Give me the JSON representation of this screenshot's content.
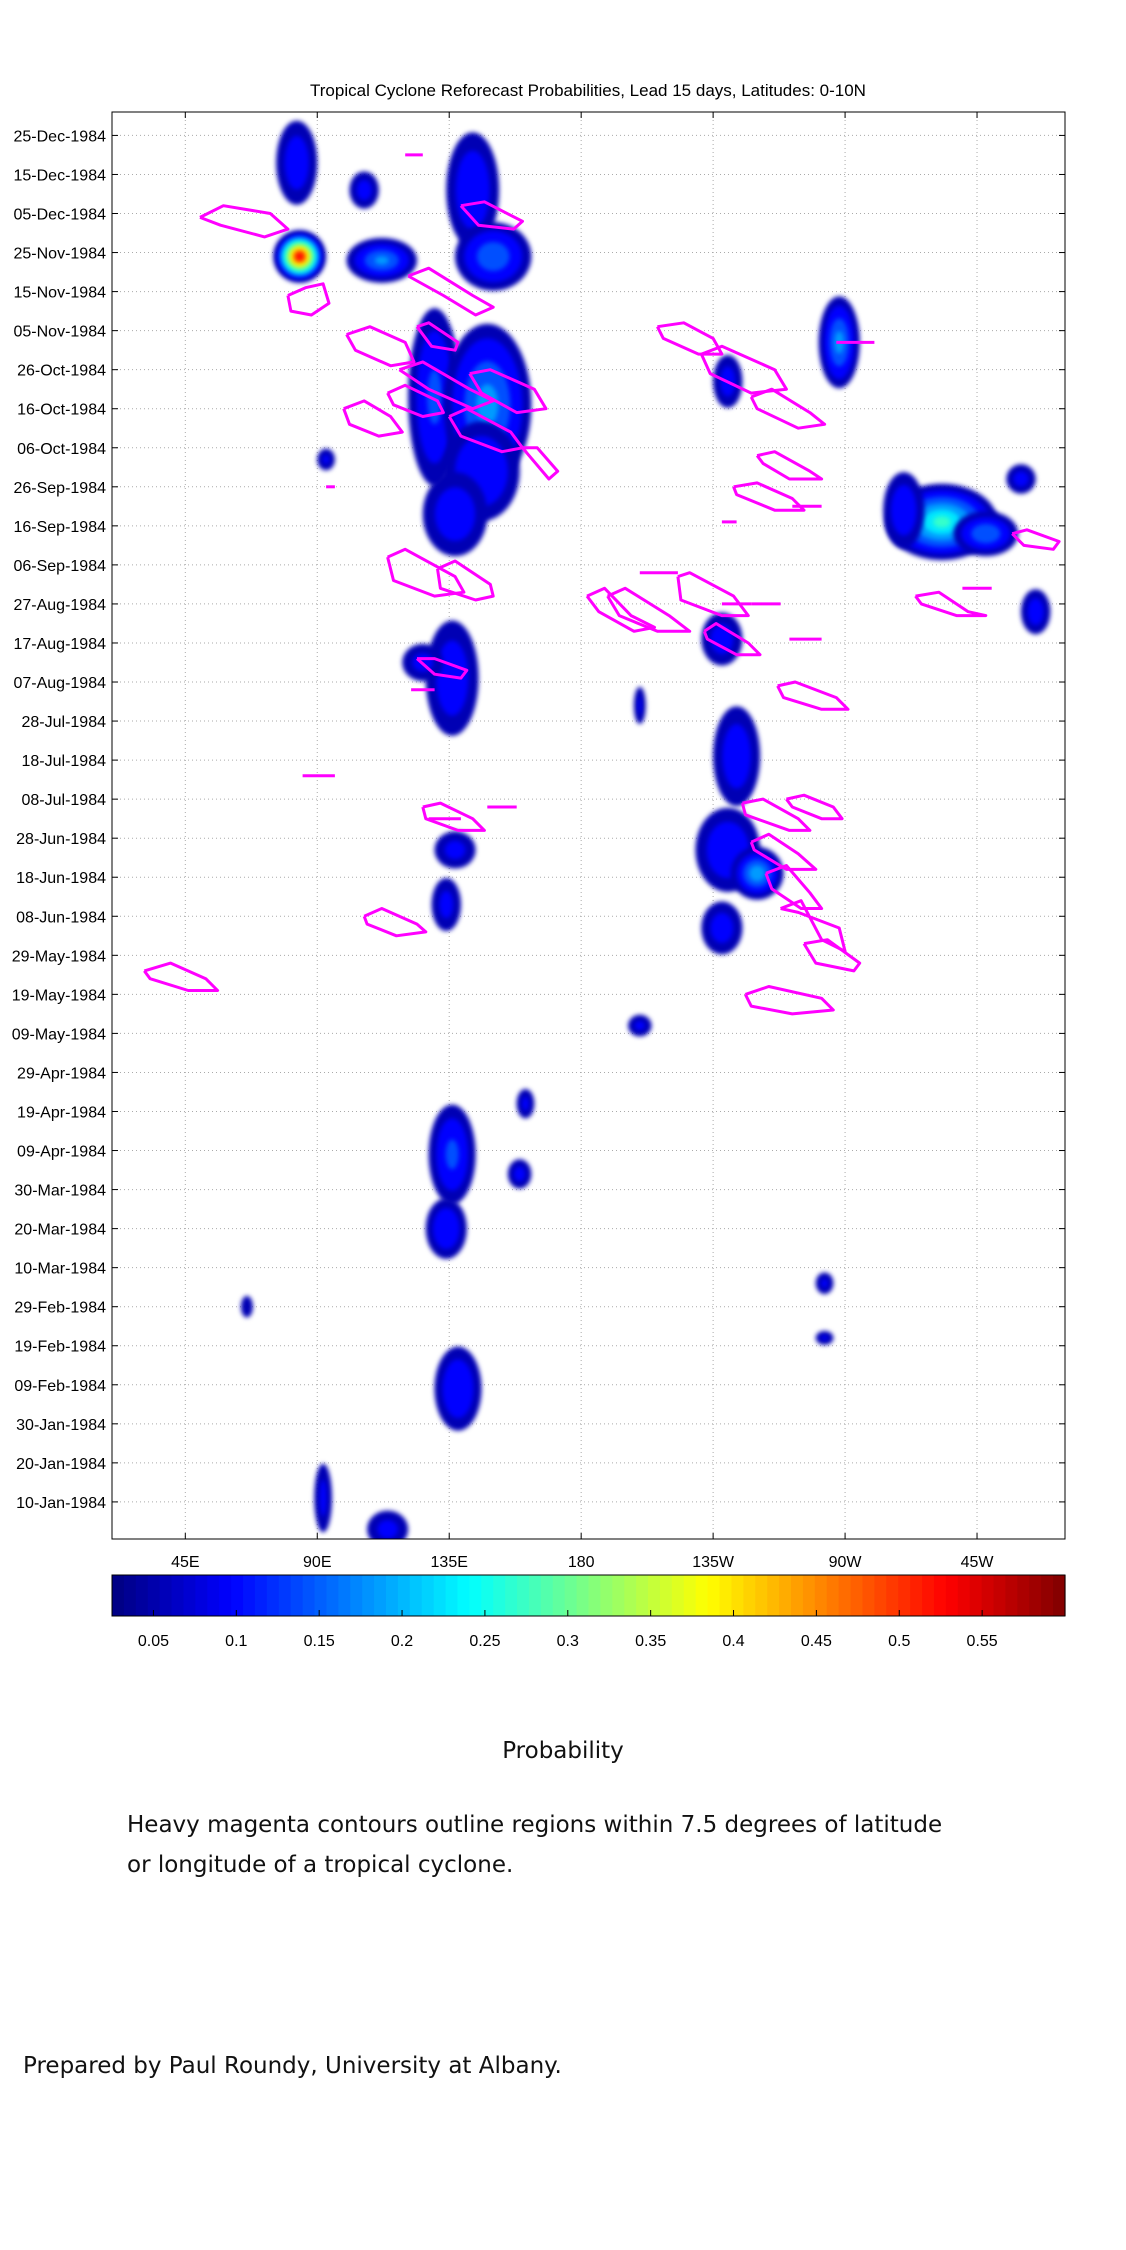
{
  "chart_data": {
    "type": "heatmap",
    "title": "Tropical Cyclone Reforecast Probabilities, Lead 15 days, Latitudes: 0-10N",
    "xlabel": "",
    "ylabel": "",
    "x_ticks": [
      "45E",
      "90E",
      "135E",
      "180",
      "135W",
      "90W",
      "45W"
    ],
    "x_tick_values": [
      45,
      90,
      135,
      180,
      225,
      270,
      315
    ],
    "xlim": [
      20,
      345
    ],
    "y_ticks": [
      "25-Dec-1984",
      "15-Dec-1984",
      "05-Dec-1984",
      "25-Nov-1984",
      "15-Nov-1984",
      "05-Nov-1984",
      "26-Oct-1984",
      "16-Oct-1984",
      "06-Oct-1984",
      "26-Sep-1984",
      "16-Sep-1984",
      "06-Sep-1984",
      "27-Aug-1984",
      "17-Aug-1984",
      "07-Aug-1984",
      "28-Jul-1984",
      "18-Jul-1984",
      "08-Jul-1984",
      "28-Jun-1984",
      "18-Jun-1984",
      "08-Jun-1984",
      "29-May-1984",
      "19-May-1984",
      "09-May-1984",
      "29-Apr-1984",
      "19-Apr-1984",
      "09-Apr-1984",
      "30-Mar-1984",
      "20-Mar-1984",
      "10-Mar-1984",
      "29-Feb-1984",
      "19-Feb-1984",
      "09-Feb-1984",
      "30-Jan-1984",
      "20-Jan-1984",
      "10-Jan-1984"
    ],
    "y_tick_values": [
      359,
      349,
      339,
      329,
      319,
      309,
      299,
      289,
      279,
      269,
      259,
      249,
      239,
      229,
      219,
      209,
      199,
      189,
      179,
      169,
      159,
      149,
      139,
      129,
      119,
      109,
      99,
      89,
      79,
      69,
      59,
      49,
      39,
      29,
      19,
      9
    ],
    "ylim": [
      -0.5,
      365
    ],
    "colorbar": {
      "label": "Probability",
      "ticks": [
        "0.05",
        "0.1",
        "0.15",
        "0.2",
        "0.25",
        "0.3",
        "0.35",
        "0.4",
        "0.45",
        "0.5",
        "0.55"
      ],
      "tick_values": [
        0.05,
        0.1,
        0.15,
        0.2,
        0.25,
        0.3,
        0.35,
        0.4,
        0.45,
        0.5,
        0.55
      ],
      "range": [
        0.025,
        0.6
      ],
      "colormap": "jet"
    },
    "grid": true,
    "contour_color": "#ff00ff",
    "prob_blobs": [
      {
        "lon": 83,
        "day": 352,
        "dlon": 6,
        "dday": 10,
        "p": 0.07
      },
      {
        "lon": 84,
        "day": 328,
        "dlon": 8,
        "dday": 6,
        "p": 0.58
      },
      {
        "lon": 112,
        "day": 327,
        "dlon": 11,
        "dday": 5,
        "p": 0.15
      },
      {
        "lon": 106,
        "day": 345,
        "dlon": 4,
        "dday": 4,
        "p": 0.06
      },
      {
        "lon": 143,
        "day": 345,
        "dlon": 8,
        "dday": 14,
        "p": 0.08
      },
      {
        "lon": 150,
        "day": 328,
        "dlon": 12,
        "dday": 8,
        "p": 0.13
      },
      {
        "lon": 130,
        "day": 292,
        "dlon": 8,
        "dday": 22,
        "p": 0.1
      },
      {
        "lon": 148,
        "day": 290,
        "dlon": 14,
        "dday": 20,
        "p": 0.16
      },
      {
        "lon": 146,
        "day": 273,
        "dlon": 12,
        "dday": 12,
        "p": 0.09
      },
      {
        "lon": 137,
        "day": 262,
        "dlon": 10,
        "dday": 10,
        "p": 0.07
      },
      {
        "lon": 93,
        "day": 276,
        "dlon": 2,
        "dday": 2,
        "p": 0.05
      },
      {
        "lon": 268,
        "day": 306,
        "dlon": 6,
        "dday": 11,
        "p": 0.16
      },
      {
        "lon": 230,
        "day": 296,
        "dlon": 4,
        "dday": 6,
        "p": 0.06
      },
      {
        "lon": 303,
        "day": 260,
        "dlon": 18,
        "dday": 9,
        "p": 0.26
      },
      {
        "lon": 318,
        "day": 257,
        "dlon": 10,
        "dday": 5,
        "p": 0.14
      },
      {
        "lon": 290,
        "day": 263,
        "dlon": 6,
        "dday": 9,
        "p": 0.08
      },
      {
        "lon": 330,
        "day": 271,
        "dlon": 4,
        "dday": 3,
        "p": 0.06
      },
      {
        "lon": 335,
        "day": 237,
        "dlon": 4,
        "dday": 5,
        "p": 0.07
      },
      {
        "lon": 136,
        "day": 220,
        "dlon": 8,
        "dday": 14,
        "p": 0.07
      },
      {
        "lon": 126,
        "day": 224,
        "dlon": 6,
        "dday": 4,
        "p": 0.05
      },
      {
        "lon": 228,
        "day": 230,
        "dlon": 6,
        "dday": 6,
        "p": 0.06
      },
      {
        "lon": 233,
        "day": 200,
        "dlon": 7,
        "dday": 12,
        "p": 0.07
      },
      {
        "lon": 230,
        "day": 176,
        "dlon": 10,
        "dday": 10,
        "p": 0.08
      },
      {
        "lon": 240,
        "day": 170,
        "dlon": 8,
        "dday": 6,
        "p": 0.18
      },
      {
        "lon": 228,
        "day": 156,
        "dlon": 6,
        "dday": 6,
        "p": 0.06
      },
      {
        "lon": 137,
        "day": 176,
        "dlon": 6,
        "dday": 4,
        "p": 0.05
      },
      {
        "lon": 134,
        "day": 162,
        "dlon": 4,
        "dday": 6,
        "p": 0.05
      },
      {
        "lon": 200,
        "day": 213,
        "dlon": 1,
        "dday": 4,
        "p": 0.05
      },
      {
        "lon": 136,
        "day": 98,
        "dlon": 7,
        "dday": 12,
        "p": 0.1
      },
      {
        "lon": 134,
        "day": 79,
        "dlon": 6,
        "dday": 7,
        "p": 0.09
      },
      {
        "lon": 159,
        "day": 93,
        "dlon": 3,
        "dday": 3,
        "p": 0.06
      },
      {
        "lon": 200,
        "day": 131,
        "dlon": 3,
        "dday": 2,
        "p": 0.05
      },
      {
        "lon": 138,
        "day": 38,
        "dlon": 7,
        "dday": 10,
        "p": 0.09
      },
      {
        "lon": 114,
        "day": 2,
        "dlon": 6,
        "dday": 4,
        "p": 0.05
      },
      {
        "lon": 161,
        "day": 111,
        "dlon": 2,
        "dday": 3,
        "p": 0.05
      },
      {
        "lon": 92,
        "day": 10,
        "dlon": 2,
        "dday": 8,
        "p": 0.05
      },
      {
        "lon": 263,
        "day": 65,
        "dlon": 2,
        "dday": 2,
        "p": 0.05
      },
      {
        "lon": 263,
        "day": 51,
        "dlon": 2,
        "dday": 1,
        "p": 0.05
      },
      {
        "lon": 66,
        "day": 59,
        "dlon": 1,
        "dday": 2,
        "p": 0.04
      }
    ],
    "cyclone_contours": [
      {
        "lon": [
          50,
          58,
          74,
          80,
          72,
          57,
          50
        ],
        "day": [
          338,
          341,
          339,
          335,
          333,
          336,
          338
        ]
      },
      {
        "lon": [
          80,
          86,
          92,
          94,
          88,
          81,
          80
        ],
        "day": [
          318,
          320,
          321,
          316,
          313,
          314,
          318
        ]
      },
      {
        "lon": [
          121,
          128,
          143,
          150,
          144,
          133,
          121
        ],
        "day": [
          323,
          325,
          318,
          315,
          313,
          318,
          323
        ]
      },
      {
        "lon": [
          139,
          147,
          160,
          157,
          145,
          139
        ],
        "day": [
          341,
          342,
          337,
          335,
          336,
          341
        ]
      },
      {
        "lon": [
          100,
          108,
          120,
          123,
          115,
          103,
          100
        ],
        "day": [
          308,
          310,
          306,
          301,
          300,
          304,
          308
        ]
      },
      {
        "lon": [
          118,
          126,
          142,
          150,
          143,
          128,
          118
        ],
        "day": [
          299,
          301,
          294,
          291,
          289,
          294,
          299
        ]
      },
      {
        "lon": [
          142,
          149,
          164,
          168,
          158,
          146,
          142
        ],
        "day": [
          298,
          299,
          294,
          289,
          288,
          293,
          298
        ]
      },
      {
        "lon": [
          99,
          106,
          115,
          119,
          111,
          101,
          99
        ],
        "day": [
          289,
          291,
          287,
          283,
          282,
          285,
          289
        ]
      },
      {
        "lon": [
          135,
          141,
          156,
          160,
          153,
          139,
          135
        ],
        "day": [
          287,
          289,
          283,
          279,
          278,
          282,
          287
        ]
      },
      {
        "lon": [
          114,
          120,
          131,
          133,
          126,
          116,
          114
        ],
        "day": [
          293,
          295,
          291,
          288,
          287,
          290,
          293
        ]
      },
      {
        "lon": [
          124,
          128,
          138,
          137,
          129,
          124
        ],
        "day": [
          310,
          311,
          306,
          304,
          305,
          310
        ]
      },
      {
        "lon": [
          160,
          165,
          172,
          169,
          160
        ],
        "day": [
          279,
          279,
          273,
          271,
          279
        ]
      },
      {
        "lon": [
          93,
          96
        ],
        "day": [
          269,
          269
        ]
      },
      {
        "lon": [
          120,
          126
        ],
        "day": [
          354,
          354
        ]
      },
      {
        "lon": [
          114,
          120,
          137,
          140,
          130,
          116,
          114
        ],
        "day": [
          251,
          253,
          246,
          242,
          241,
          245,
          251
        ]
      },
      {
        "lon": [
          131,
          137,
          149,
          150,
          144,
          132,
          131
        ],
        "day": [
          248,
          250,
          244,
          241,
          240,
          243,
          248
        ]
      },
      {
        "lon": [
          124,
          130,
          141,
          139,
          130,
          124
        ],
        "day": [
          225,
          225,
          222,
          220,
          221,
          225
        ]
      },
      {
        "lon": [
          122,
          130
        ],
        "day": [
          217,
          217
        ]
      },
      {
        "lon": [
          206,
          215,
          225,
          228,
          220,
          208,
          206
        ],
        "day": [
          310,
          311,
          307,
          303,
          303,
          307,
          310
        ]
      },
      {
        "lon": [
          221,
          228,
          246,
          250,
          238,
          224,
          221
        ],
        "day": [
          303,
          305,
          299,
          294,
          293,
          298,
          303
        ]
      },
      {
        "lon": [
          238,
          245,
          258,
          263,
          254,
          240,
          238
        ],
        "day": [
          292,
          294,
          288,
          285,
          284,
          289,
          292
        ]
      },
      {
        "lon": [
          240,
          246,
          258,
          262,
          251,
          242,
          240
        ],
        "day": [
          277,
          278,
          273,
          271,
          271,
          275,
          277
        ]
      },
      {
        "lon": [
          232,
          240,
          252,
          256,
          246,
          233,
          232
        ],
        "day": [
          269,
          270,
          266,
          263,
          263,
          267,
          269
        ]
      },
      {
        "lon": [
          252,
          262
        ],
        "day": [
          264,
          264
        ]
      },
      {
        "lon": [
          228,
          233
        ],
        "day": [
          260,
          260
        ]
      },
      {
        "lon": [
          327,
          332,
          343,
          341,
          331,
          327
        ],
        "day": [
          257,
          258,
          255,
          253,
          254,
          257
        ]
      },
      {
        "lon": [
          267,
          280
        ],
        "day": [
          306,
          306
        ]
      },
      {
        "lon": [
          294,
          302,
          312,
          318,
          308,
          296,
          294
        ],
        "day": [
          241,
          242,
          237,
          236,
          236,
          239,
          241
        ]
      },
      {
        "lon": [
          310,
          320
        ],
        "day": [
          243,
          243
        ]
      },
      {
        "lon": [
          182,
          188,
          197,
          205,
          198,
          186,
          182
        ],
        "day": [
          241,
          243,
          236,
          233,
          232,
          237,
          241
        ]
      },
      {
        "lon": [
          200,
          213
        ],
        "day": [
          247,
          247
        ]
      },
      {
        "lon": [
          189,
          195,
          210,
          217,
          206,
          193,
          189
        ],
        "day": [
          241,
          243,
          236,
          232,
          232,
          236,
          241
        ]
      },
      {
        "lon": [
          213,
          217,
          232,
          237,
          228,
          214,
          213
        ],
        "day": [
          246,
          247,
          241,
          236,
          236,
          240,
          246
        ]
      },
      {
        "lon": [
          222,
          226,
          237,
          241,
          233,
          223,
          222
        ],
        "day": [
          232,
          234,
          229,
          226,
          226,
          230,
          232
        ]
      },
      {
        "lon": [
          228,
          238
        ],
        "day": [
          239,
          239
        ]
      },
      {
        "lon": [
          238,
          248
        ],
        "day": [
          239,
          239
        ]
      },
      {
        "lon": [
          251,
          262
        ],
        "day": [
          230,
          230
        ]
      },
      {
        "lon": [
          247,
          253,
          267,
          271,
          262,
          249,
          247
        ],
        "day": [
          218,
          219,
          215,
          212,
          212,
          215,
          218
        ]
      },
      {
        "lon": [
          235,
          242,
          254,
          258,
          251,
          236,
          235
        ],
        "day": [
          188,
          189,
          184,
          181,
          181,
          185,
          188
        ]
      },
      {
        "lon": [
          250,
          256,
          266,
          269,
          262,
          252,
          250
        ],
        "day": [
          189,
          190,
          187,
          184,
          184,
          187,
          189
        ]
      },
      {
        "lon": [
          238,
          244,
          254,
          260,
          250,
          239,
          238
        ],
        "day": [
          178,
          180,
          175,
          171,
          171,
          176,
          178
        ]
      },
      {
        "lon": [
          243,
          250,
          258,
          262,
          255,
          245,
          243
        ],
        "day": [
          170,
          172,
          165,
          161,
          161,
          166,
          170
        ]
      },
      {
        "lon": [
          248,
          255,
          262,
          270,
          268,
          254,
          248
        ],
        "day": [
          161,
          163,
          153,
          150,
          156,
          160,
          161
        ]
      },
      {
        "lon": [
          256,
          264,
          275,
          273,
          260,
          256
        ],
        "day": [
          152,
          153,
          147,
          145,
          147,
          152
        ]
      },
      {
        "lon": [
          236,
          244,
          262,
          266,
          252,
          238,
          236
        ],
        "day": [
          139,
          141,
          138,
          135,
          134,
          136,
          139
        ]
      },
      {
        "lon": [
          31,
          40,
          52,
          56,
          46,
          33,
          31
        ],
        "day": [
          145,
          147,
          143,
          140,
          140,
          143,
          145
        ]
      },
      {
        "lon": [
          106,
          112,
          124,
          127,
          117,
          107,
          106
        ],
        "day": [
          159,
          161,
          157,
          155,
          154,
          157,
          159
        ]
      },
      {
        "lon": [
          126,
          132,
          143,
          147,
          138,
          127,
          126
        ],
        "day": [
          187,
          188,
          184,
          181,
          181,
          184,
          187
        ]
      },
      {
        "lon": [
          128,
          139
        ],
        "day": [
          184,
          184
        ]
      },
      {
        "lon": [
          148,
          158
        ],
        "day": [
          187,
          187
        ]
      },
      {
        "lon": [
          85,
          96
        ],
        "day": [
          195,
          195
        ]
      }
    ]
  },
  "captions": {
    "colorbar_label": "Probability",
    "note_line1": "Heavy magenta contours outline regions within 7.5 degrees of latitude",
    "note_line2": "or longitude of a tropical cyclone.",
    "credit": "Prepared by Paul Roundy, University at Albany."
  }
}
